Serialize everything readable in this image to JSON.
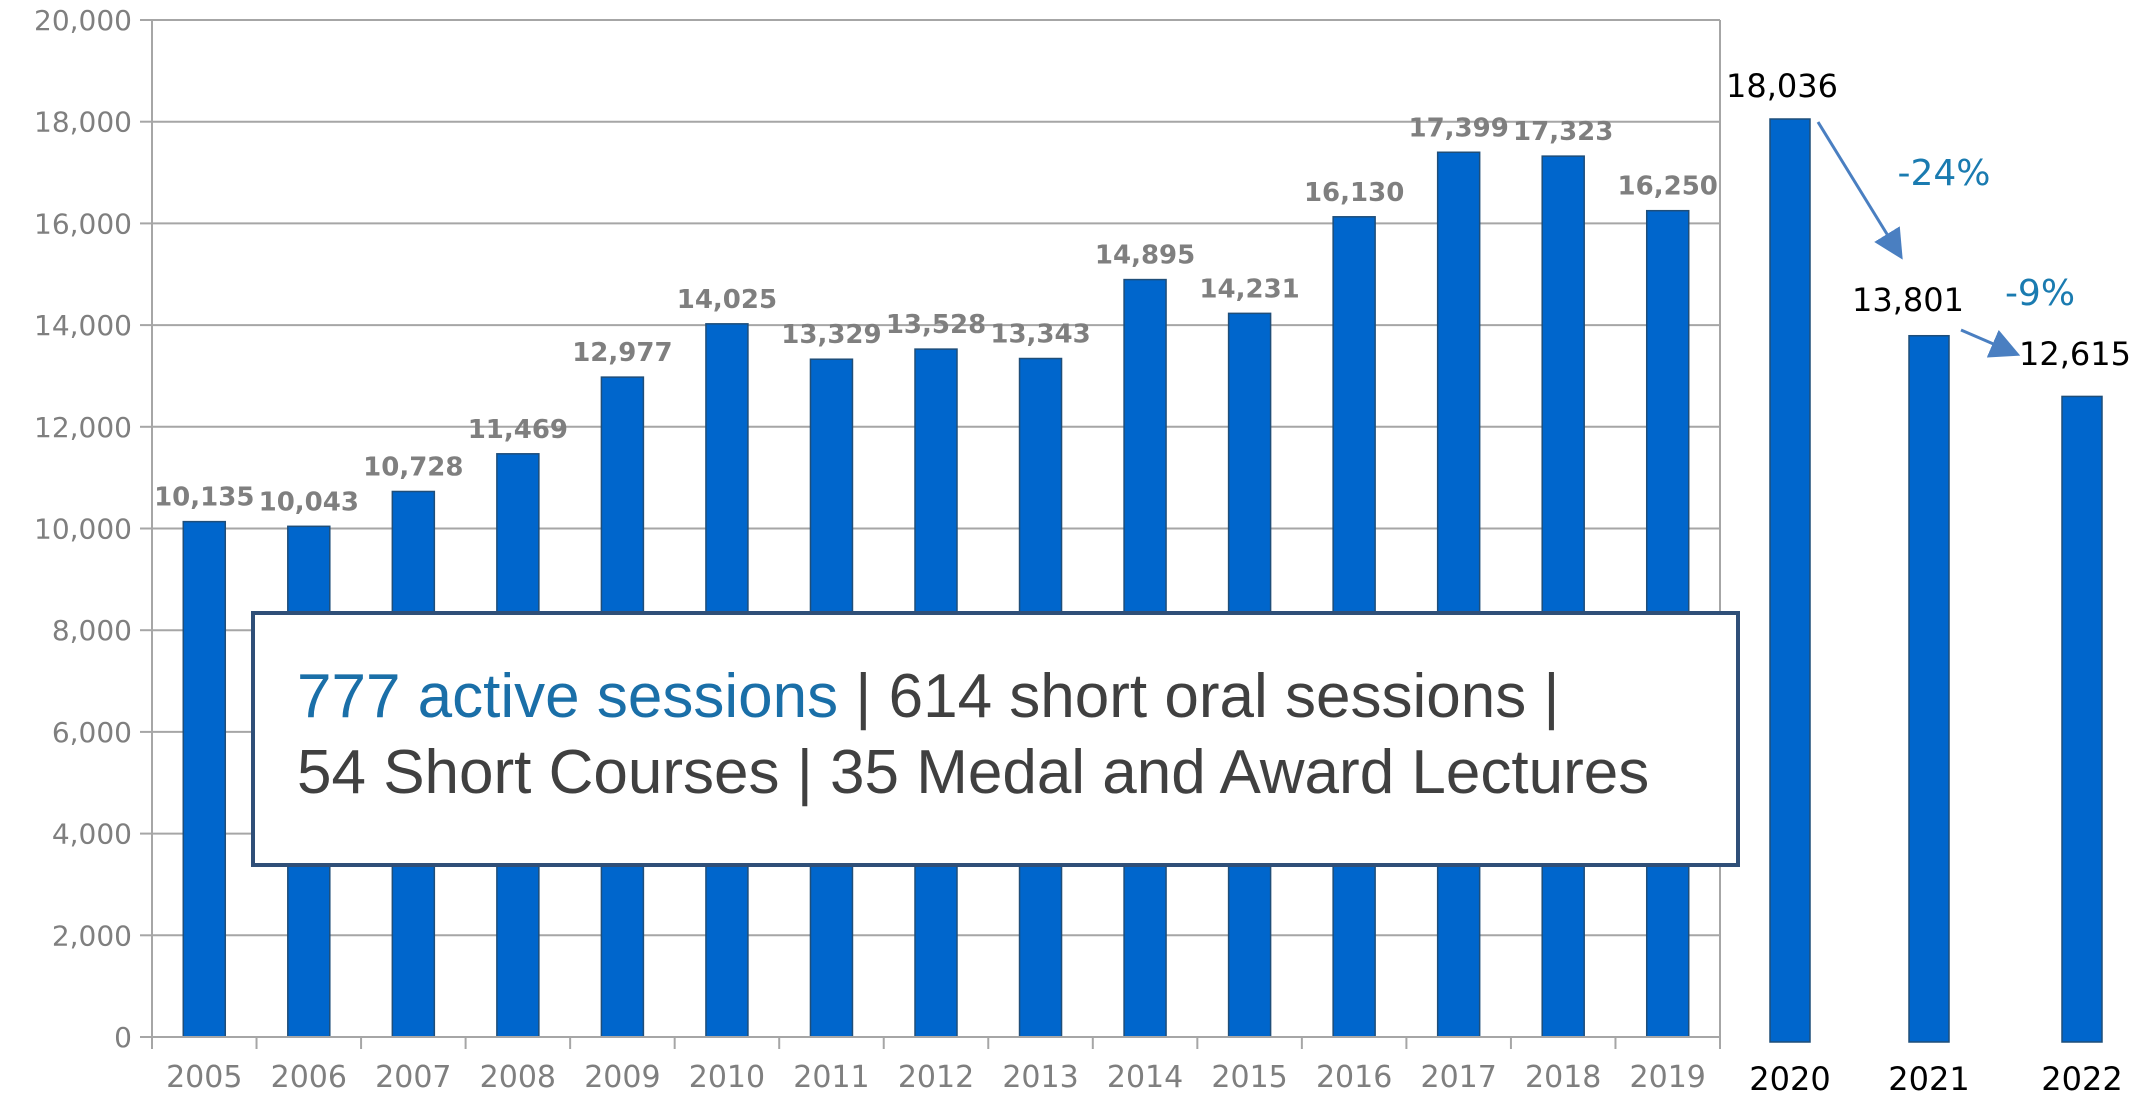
{
  "chart_data": [
    {
      "type": "bar",
      "categories": [
        "2005",
        "2006",
        "2007",
        "2008",
        "2009",
        "2010",
        "2011",
        "2012",
        "2013",
        "2014",
        "2015",
        "2016",
        "2017",
        "2018",
        "2019"
      ],
      "values": [
        10135,
        10043,
        10728,
        11469,
        12977,
        14025,
        13329,
        13528,
        13343,
        14895,
        14231,
        16130,
        17399,
        17323,
        16250
      ],
      "value_labels": [
        "10,135",
        "10,043",
        "10,728",
        "11,469",
        "12,977",
        "14,025",
        "13,329",
        "13,528",
        "13,343",
        "14,895",
        "14,231",
        "16,130",
        "17,399",
        "17,323",
        "16,250"
      ],
      "ylim": [
        0,
        20000
      ],
      "yticks": [
        0,
        2000,
        4000,
        6000,
        8000,
        10000,
        12000,
        14000,
        16000,
        18000,
        20000
      ],
      "ytick_labels": [
        "0",
        "2,000",
        "4,000",
        "6,000",
        "8,000",
        "10,000",
        "12,000",
        "14,000",
        "16,000",
        "18,000",
        "20,000"
      ],
      "grid": true,
      "bar_color": "#0066cc"
    },
    {
      "type": "bar",
      "categories": [
        "2020",
        "2021",
        "2022"
      ],
      "values": [
        18036,
        13801,
        12615
      ],
      "value_labels": [
        "18,036",
        "13,801",
        "12,615"
      ],
      "ylim": [
        0,
        20000
      ],
      "grid": false,
      "bar_color": "#0066cc",
      "annotations": [
        {
          "text": "-24%",
          "from": "2020",
          "to": "2021"
        },
        {
          "text": "-9%",
          "from": "2021",
          "to": "2022"
        }
      ],
      "annotation_color": "#1a7bb0",
      "arrow_color": "#4a7fc1"
    }
  ],
  "callout": {
    "part1": "777 active sessions",
    "part2": " | 614 short oral sessions |",
    "line2": "54 Short Courses | 35 Medal and Award Lectures"
  }
}
